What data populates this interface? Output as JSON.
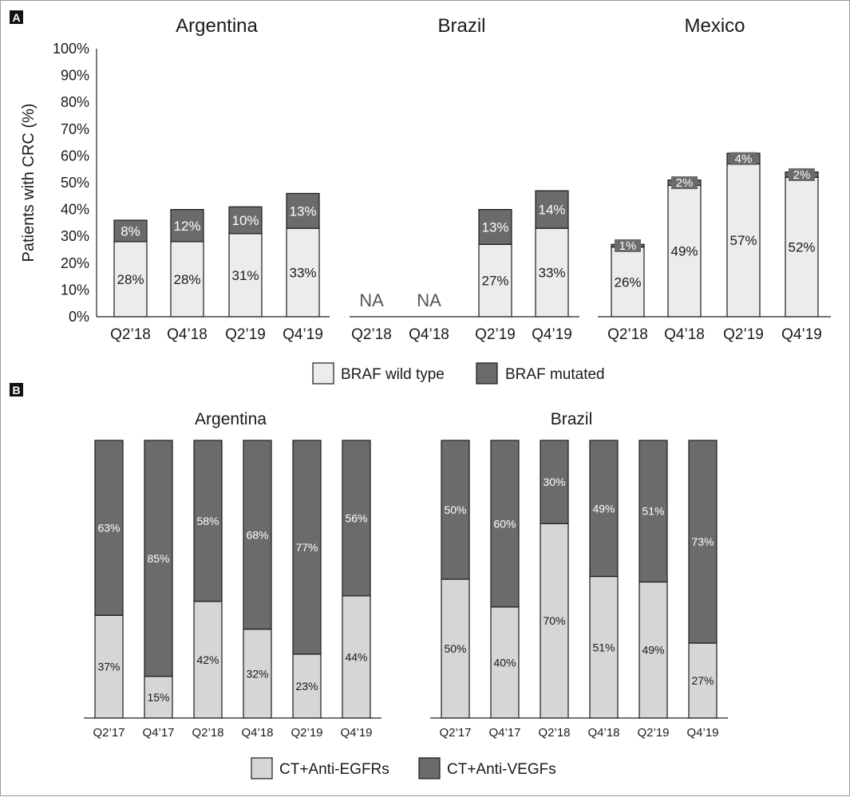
{
  "colors": {
    "wild": "#ececec",
    "mut": "#6b6b6b",
    "egfr": "#d6d6d6",
    "vegf": "#6b6b6b",
    "stroke": "#1a1a1a"
  },
  "chart_data": [
    {
      "panel": "A",
      "type": "bar",
      "stacked": true,
      "ylabel": "Patients with CRC (%)",
      "ylim": [
        0,
        100
      ],
      "yticks": [
        "0%",
        "10%",
        "20%",
        "30%",
        "40%",
        "50%",
        "60%",
        "70%",
        "80%",
        "90%",
        "100%"
      ],
      "legend": [
        {
          "label": "BRAF wild type",
          "color": "#ececec"
        },
        {
          "label": "BRAF mutated",
          "color": "#6b6b6b"
        }
      ],
      "groups": [
        {
          "title": "Argentina",
          "categories": [
            "Q2’18",
            "Q4’18",
            "Q2’19",
            "Q4’19"
          ],
          "series": [
            {
              "name": "BRAF wild type",
              "values": [
                28,
                28,
                31,
                33
              ],
              "labels": [
                "28%",
                "28%",
                "31%",
                "33%"
              ]
            },
            {
              "name": "BRAF mutated",
              "values": [
                8,
                12,
                10,
                13
              ],
              "labels": [
                "8%",
                "12%",
                "10%",
                "13%"
              ]
            }
          ],
          "na": [
            null,
            null,
            null,
            null
          ]
        },
        {
          "title": "Brazil",
          "categories": [
            "Q2’18",
            "Q4’18",
            "Q2’19",
            "Q4’19"
          ],
          "series": [
            {
              "name": "BRAF wild type",
              "values": [
                null,
                null,
                27,
                33
              ],
              "labels": [
                null,
                null,
                "27%",
                "33%"
              ]
            },
            {
              "name": "BRAF mutated",
              "values": [
                null,
                null,
                13,
                14
              ],
              "labels": [
                null,
                null,
                "13%",
                "14%"
              ]
            }
          ],
          "na": [
            "NA",
            "NA",
            null,
            null
          ]
        },
        {
          "title": "Mexico",
          "categories": [
            "Q2’18",
            "Q4’18",
            "Q2’19",
            "Q4’19"
          ],
          "series": [
            {
              "name": "BRAF wild type",
              "values": [
                26,
                49,
                57,
                52
              ],
              "labels": [
                "26%",
                "49%",
                "57%",
                "52%"
              ]
            },
            {
              "name": "BRAF mutated",
              "values": [
                1,
                2,
                4,
                2
              ],
              "labels": [
                "1%",
                "2%",
                "4%",
                "2%"
              ]
            }
          ],
          "na": [
            null,
            null,
            null,
            null
          ]
        }
      ]
    },
    {
      "panel": "B",
      "type": "bar",
      "stacked": true,
      "percent": true,
      "legend": [
        {
          "label": "CT+Anti-EGFRs",
          "color": "#d6d6d6"
        },
        {
          "label": "CT+Anti-VEGFs",
          "color": "#6b6b6b"
        }
      ],
      "groups": [
        {
          "title": "Argentina",
          "categories": [
            "Q2’17",
            "Q4’17",
            "Q2’18",
            "Q4’18",
            "Q2’19",
            "Q4’19"
          ],
          "series": [
            {
              "name": "CT+Anti-EGFRs",
              "values": [
                37,
                15,
                42,
                32,
                23,
                44
              ],
              "labels": [
                "37%",
                "15%",
                "42%",
                "32%",
                "23%",
                "44%"
              ]
            },
            {
              "name": "CT+Anti-VEGFs",
              "values": [
                63,
                85,
                58,
                68,
                77,
                56
              ],
              "labels": [
                "63%",
                "85%",
                "58%",
                "68%",
                "77%",
                "56%"
              ]
            }
          ]
        },
        {
          "title": "Brazil",
          "categories": [
            "Q2’17",
            "Q4’17",
            "Q2’18",
            "Q4’18",
            "Q2’19",
            "Q4’19"
          ],
          "series": [
            {
              "name": "CT+Anti-EGFRs",
              "values": [
                50,
                40,
                70,
                51,
                49,
                27
              ],
              "labels": [
                "50%",
                "40%",
                "70%",
                "51%",
                "49%",
                "27%"
              ]
            },
            {
              "name": "CT+Anti-VEGFs",
              "values": [
                50,
                60,
                30,
                49,
                51,
                73
              ],
              "labels": [
                "50%",
                "60%",
                "30%",
                "49%",
                "51%",
                "73%"
              ]
            }
          ]
        }
      ]
    }
  ]
}
